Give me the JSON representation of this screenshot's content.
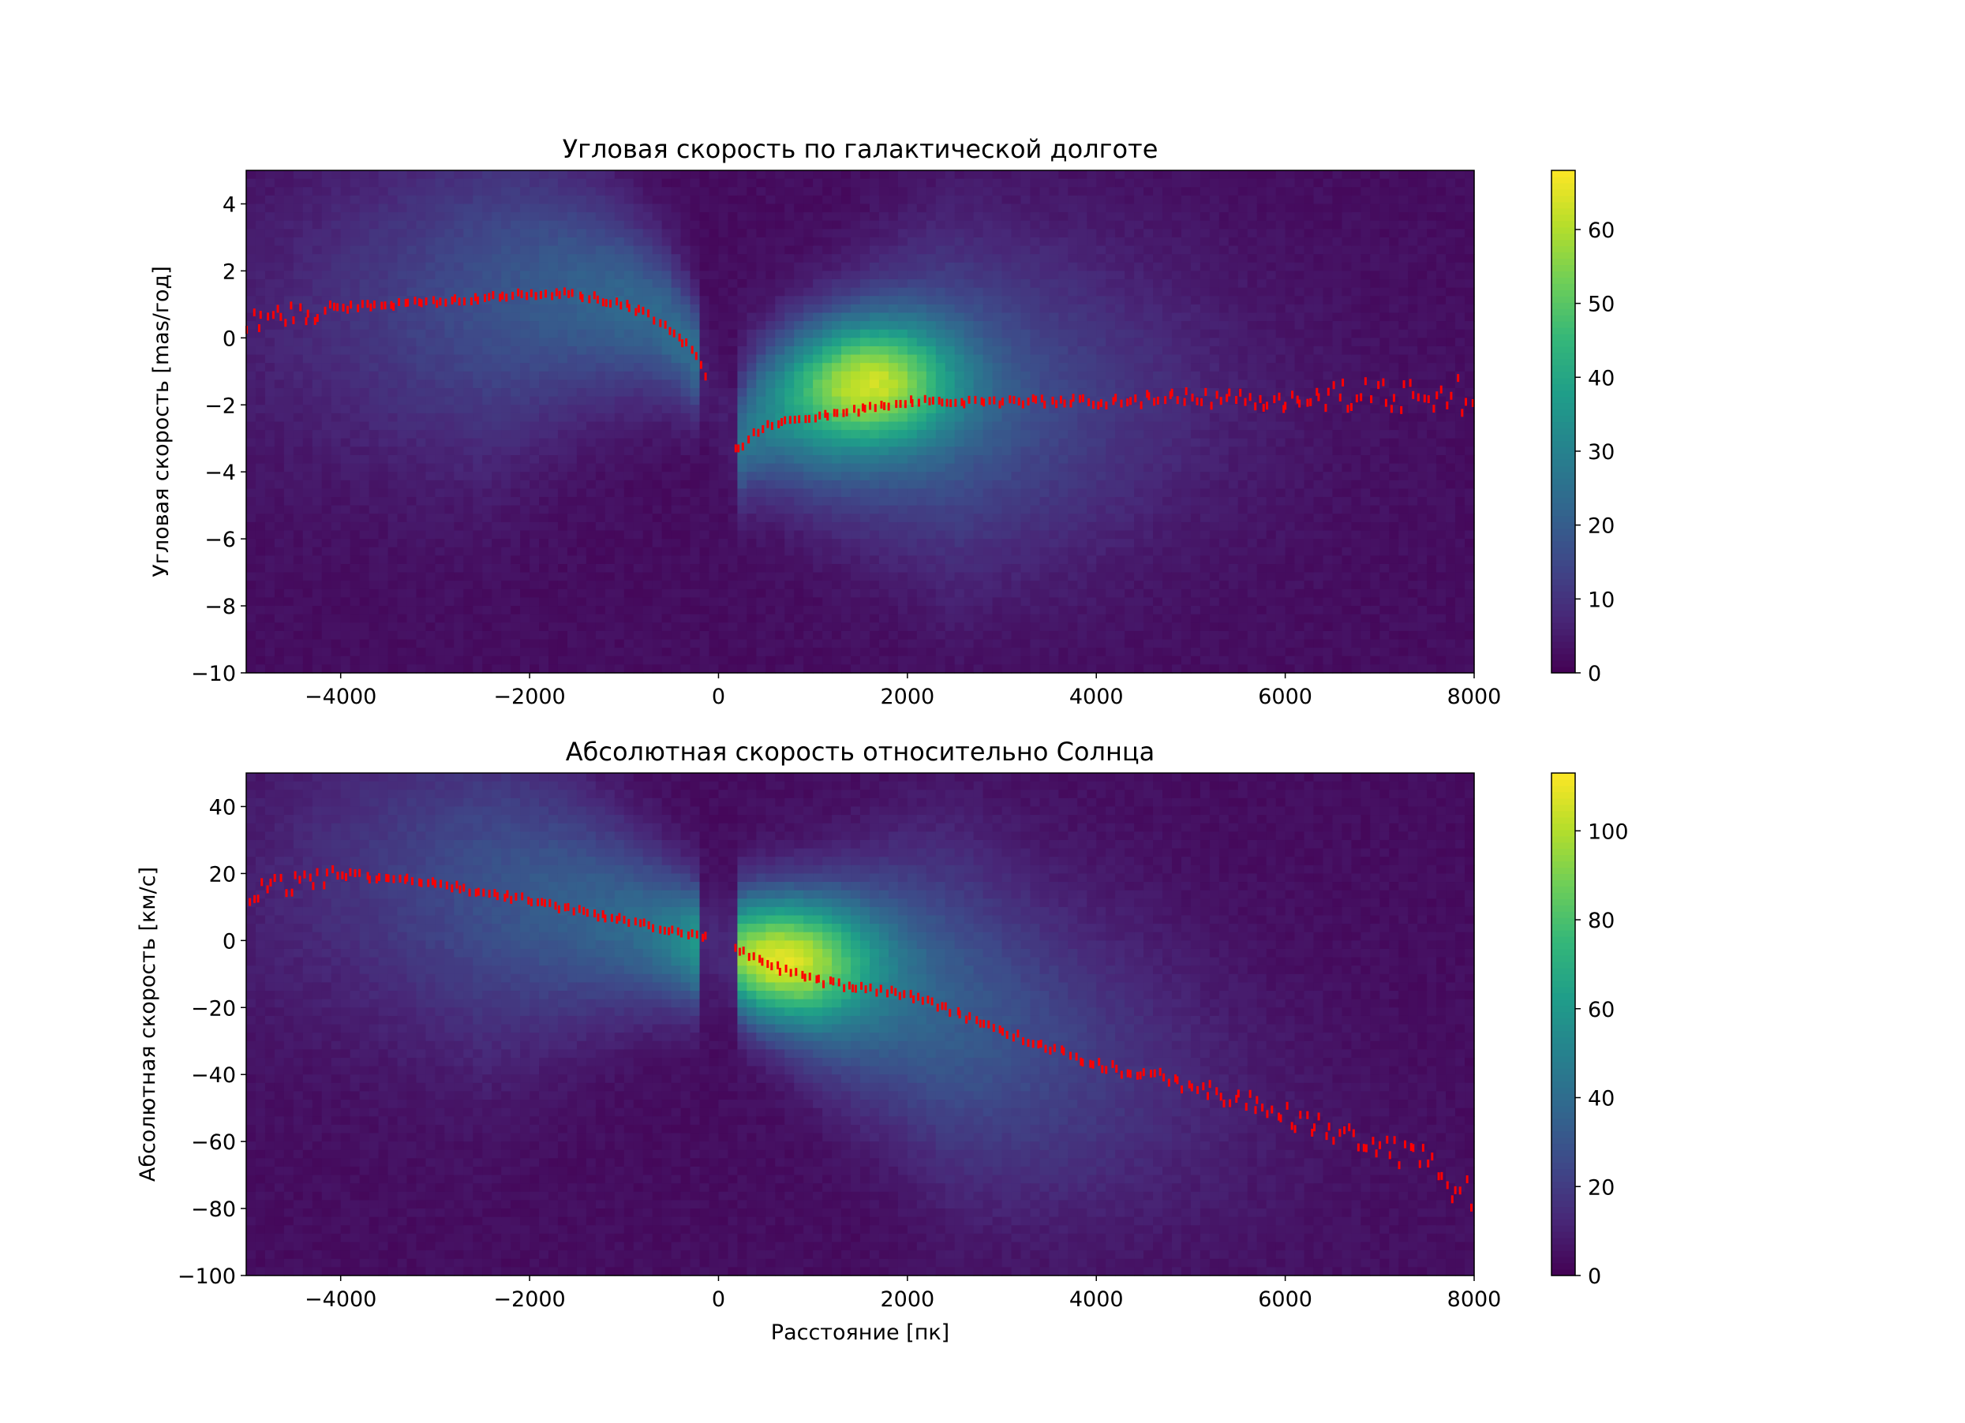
{
  "colors": {
    "background": "#ffffff",
    "points": "#ff0000",
    "colormap": [
      "#440154",
      "#482878",
      "#3e4989",
      "#31688e",
      "#26828e",
      "#1f9e89",
      "#35b779",
      "#6ece58",
      "#b5de2b",
      "#fde725"
    ]
  },
  "chart_data": [
    {
      "type": "heatmap",
      "overlay": "scatter",
      "title": "Угловая скорость по галактической долготе",
      "xlabel": "",
      "ylabel": "Угловая скорость [mas/год]",
      "xlim": [
        -5000,
        8000
      ],
      "ylim": [
        -10,
        5
      ],
      "xticks": [
        -4000,
        -2000,
        0,
        2000,
        4000,
        6000,
        8000
      ],
      "xtick_labels": [
        "−4000",
        "−2000",
        "0",
        "2000",
        "4000",
        "6000",
        "8000"
      ],
      "yticks": [
        -10,
        -8,
        -6,
        -4,
        -2,
        0,
        2,
        4
      ],
      "ytick_labels": [
        "−10",
        "−8",
        "−6",
        "−4",
        "−2",
        "0",
        "2",
        "4"
      ],
      "colorbar": {
        "range": [
          0,
          68
        ],
        "ticks": [
          0,
          10,
          20,
          30,
          40,
          50,
          60
        ],
        "tick_labels": [
          "0",
          "10",
          "20",
          "30",
          "40",
          "50",
          "60"
        ]
      },
      "density_peak": {
        "x": 1600,
        "y": -1.3
      },
      "trend": {
        "x": [
          -5000,
          -4000,
          -3000,
          -2000,
          -1500,
          -1000,
          -600,
          -300,
          -150,
          200,
          300,
          500,
          800,
          1200,
          1600,
          2000,
          3000,
          4000,
          5000,
          6000,
          7000,
          8000
        ],
        "y": [
          0.5,
          0.9,
          1.1,
          1.3,
          1.3,
          1.0,
          0.5,
          -0.3,
          -1.0,
          -3.4,
          -3.0,
          -2.6,
          -2.4,
          -2.3,
          -2.1,
          -1.9,
          -1.9,
          -1.9,
          -1.8,
          -1.8,
          -1.7,
          -1.7
        ]
      }
    },
    {
      "type": "heatmap",
      "overlay": "scatter",
      "title": "Абсолютная скорость относительно Солнца",
      "xlabel": "Расстояние [пк]",
      "ylabel": "Абсолютная скорость [км/с]",
      "xlim": [
        -5000,
        8000
      ],
      "ylim": [
        -100,
        50
      ],
      "xticks": [
        -4000,
        -2000,
        0,
        2000,
        4000,
        6000,
        8000
      ],
      "xtick_labels": [
        "−4000",
        "−2000",
        "0",
        "2000",
        "4000",
        "6000",
        "8000"
      ],
      "yticks": [
        -100,
        -80,
        -60,
        -40,
        -20,
        0,
        20,
        40
      ],
      "ytick_labels": [
        "−100",
        "−80",
        "−60",
        "−40",
        "−20",
        "0",
        "20",
        "40"
      ],
      "colorbar": {
        "range": [
          0,
          113
        ],
        "ticks": [
          0,
          20,
          40,
          60,
          80,
          100
        ],
        "tick_labels": [
          "0",
          "20",
          "40",
          "60",
          "80",
          "100"
        ]
      },
      "density_peak": {
        "x": 700,
        "y": -5
      },
      "trend": {
        "x": [
          -5000,
          -4000,
          -3000,
          -2000,
          -1000,
          0,
          500,
          1000,
          2000,
          3000,
          4000,
          5000,
          6000,
          7000,
          8000
        ],
        "y": [
          14,
          20,
          17,
          12,
          6,
          0,
          -7,
          -12,
          -16,
          -27,
          -37,
          -43,
          -52,
          -60,
          -75
        ]
      }
    }
  ]
}
